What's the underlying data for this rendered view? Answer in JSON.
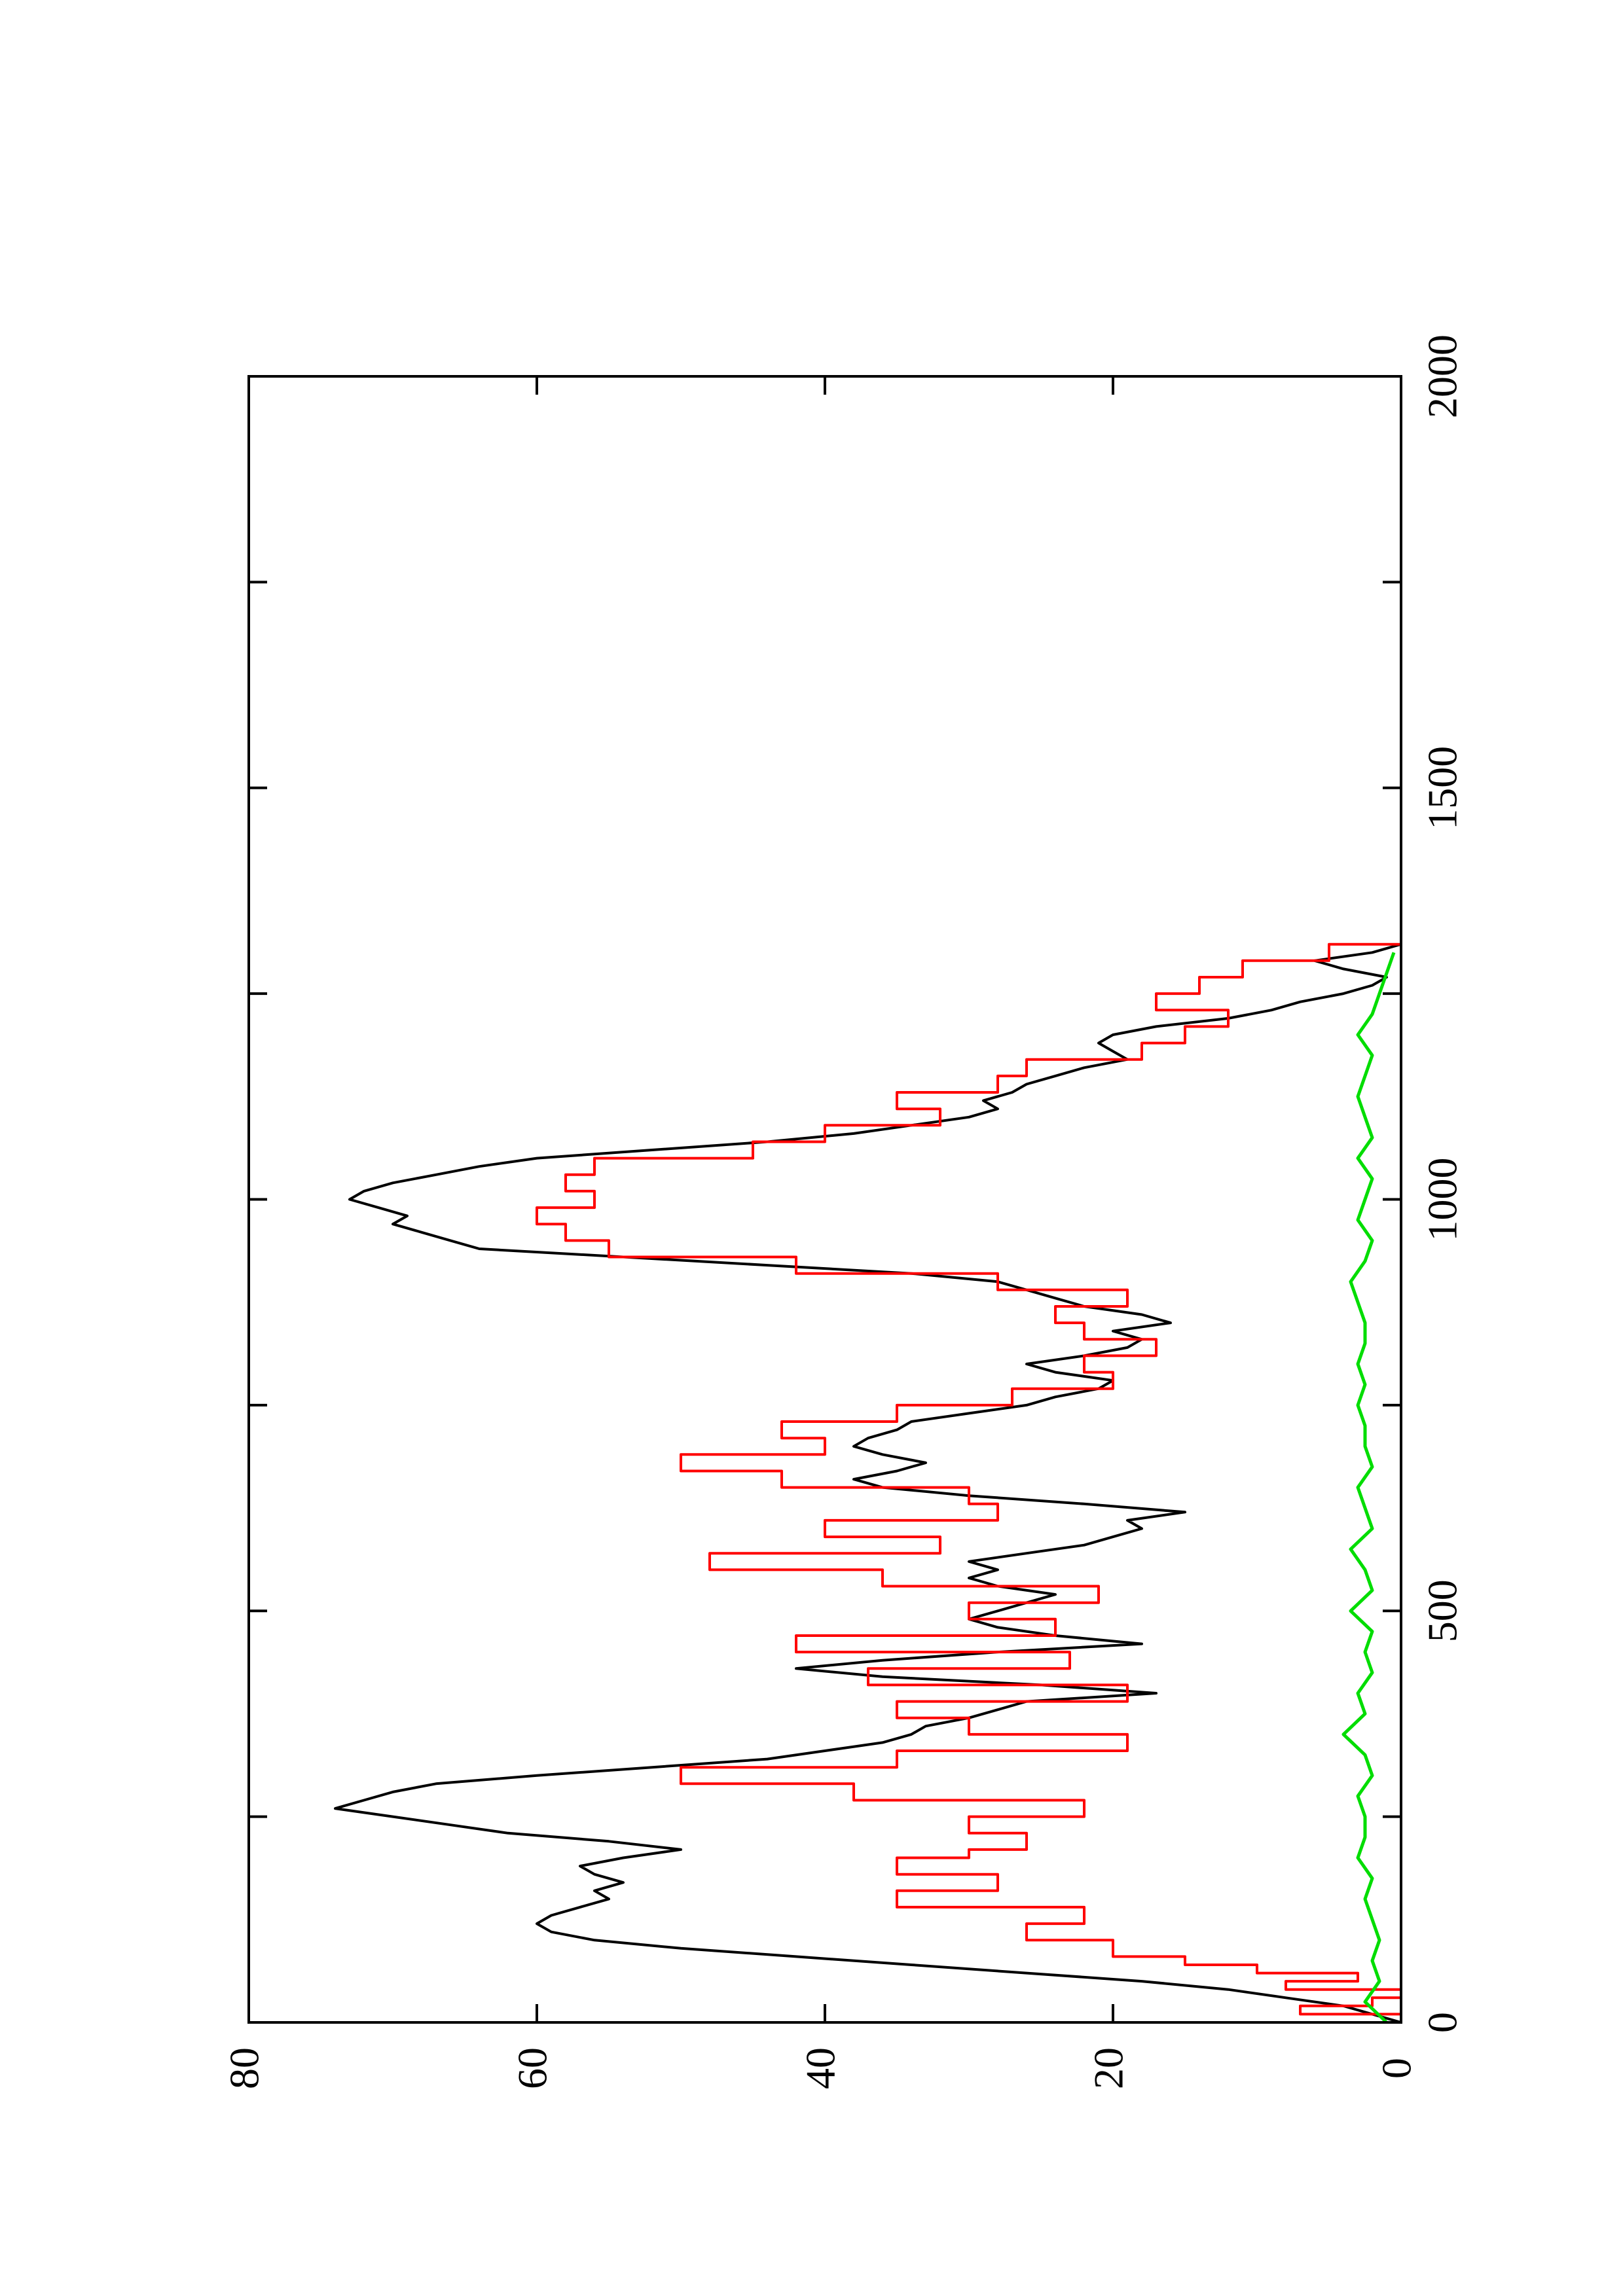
{
  "chart_data": {
    "type": "line",
    "orientation": "rotated-90-ccw",
    "title": "",
    "xlabel": "",
    "ylabel": "",
    "xlim": [
      0,
      2000
    ],
    "ylim": [
      0,
      80
    ],
    "x_ticks": [
      0,
      500,
      1000,
      1500,
      2000
    ],
    "y_ticks": [
      0,
      20,
      40,
      60,
      80
    ],
    "x_tick_labels": [
      "0",
      "500",
      "1000",
      "1500",
      "2000"
    ],
    "y_tick_labels": [
      "0",
      "20",
      "40",
      "60",
      "80"
    ],
    "grid": false,
    "legend": "none",
    "series": [
      {
        "color": "#000000",
        "style": "smooth",
        "x": [
          0,
          10,
          20,
          30,
          40,
          50,
          60,
          70,
          80,
          90,
          100,
          110,
          120,
          130,
          140,
          150,
          160,
          170,
          180,
          190,
          200,
          210,
          220,
          230,
          240,
          250,
          260,
          270,
          280,
          290,
          300,
          310,
          320,
          330,
          340,
          350,
          360,
          370,
          380,
          390,
          400,
          410,
          420,
          430,
          440,
          450,
          460,
          470,
          480,
          490,
          500,
          510,
          520,
          530,
          540,
          550,
          560,
          570,
          580,
          590,
          600,
          610,
          620,
          630,
          640,
          650,
          660,
          670,
          680,
          690,
          700,
          710,
          720,
          730,
          740,
          750,
          760,
          770,
          780,
          790,
          800,
          810,
          820,
          830,
          840,
          850,
          860,
          870,
          880,
          890,
          900,
          910,
          920,
          930,
          940,
          950,
          960,
          970,
          980,
          990,
          1000,
          1010,
          1020,
          1030,
          1040,
          1050,
          1060,
          1070,
          1080,
          1090,
          1100,
          1110,
          1120,
          1130,
          1140,
          1150,
          1160,
          1170,
          1180,
          1190,
          1200,
          1210,
          1220,
          1230,
          1240,
          1250,
          1260,
          1270,
          1280,
          1290,
          1300,
          1310
        ],
        "y": [
          0,
          2,
          4,
          8,
          12,
          18,
          26,
          34,
          42,
          50,
          56,
          59,
          60,
          59,
          57,
          55,
          56,
          54,
          56,
          57,
          54,
          50,
          55,
          62,
          66,
          70,
          74,
          72,
          70,
          67,
          60,
          52,
          44,
          40,
          36,
          34,
          33,
          30,
          28,
          26,
          17,
          25,
          36,
          42,
          36,
          28,
          18,
          24,
          28,
          30,
          28,
          26,
          24,
          28,
          30,
          28,
          30,
          26,
          22,
          20,
          18,
          19,
          15,
          22,
          30,
          36,
          38,
          35,
          33,
          36,
          38,
          37,
          35,
          34,
          30,
          26,
          24,
          21,
          20,
          24,
          26,
          22,
          19,
          18,
          20,
          16,
          18,
          22,
          24,
          26,
          28,
          34,
          44,
          54,
          64,
          66,
          68,
          70,
          69,
          71,
          73,
          72,
          70,
          67,
          64,
          60,
          52,
          44,
          38,
          34,
          30,
          28,
          29,
          27,
          26,
          24,
          22,
          19,
          20,
          21,
          20,
          17,
          12,
          9,
          7,
          4,
          2,
          1,
          4,
          6,
          2,
          0
        ]
      },
      {
        "color": "#ff0000",
        "style": "step",
        "x": [
          0,
          10,
          20,
          30,
          40,
          50,
          60,
          70,
          80,
          100,
          120,
          140,
          160,
          180,
          200,
          210,
          230,
          250,
          270,
          290,
          310,
          330,
          350,
          370,
          390,
          410,
          430,
          450,
          470,
          490,
          510,
          530,
          550,
          570,
          590,
          610,
          630,
          650,
          670,
          690,
          710,
          730,
          750,
          770,
          790,
          810,
          830,
          850,
          870,
          890,
          910,
          930,
          950,
          970,
          990,
          1010,
          1030,
          1050,
          1070,
          1090,
          1110,
          1130,
          1150,
          1170,
          1190,
          1210,
          1230,
          1250,
          1270,
          1290,
          1310
        ],
        "y": [
          0,
          7,
          2,
          0,
          8,
          3,
          10,
          15,
          20,
          26,
          22,
          35,
          28,
          35,
          30,
          26,
          30,
          22,
          38,
          50,
          35,
          19,
          30,
          35,
          19,
          37,
          23,
          42,
          24,
          30,
          21,
          36,
          48,
          32,
          40,
          28,
          30,
          43,
          50,
          40,
          43,
          35,
          27,
          20,
          22,
          17,
          22,
          24,
          19,
          28,
          42,
          55,
          58,
          60,
          56,
          58,
          56,
          45,
          40,
          32,
          35,
          28,
          26,
          18,
          15,
          12,
          17,
          14,
          11,
          5,
          0
        ]
      },
      {
        "color": "#00dd00",
        "style": "noise",
        "x": [
          0,
          25,
          50,
          75,
          100,
          125,
          150,
          175,
          200,
          225,
          250,
          275,
          300,
          325,
          350,
          375,
          400,
          425,
          450,
          475,
          500,
          525,
          550,
          575,
          600,
          625,
          650,
          675,
          700,
          725,
          750,
          775,
          800,
          825,
          850,
          875,
          900,
          925,
          950,
          975,
          1000,
          1025,
          1050,
          1075,
          1100,
          1125,
          1150,
          1175,
          1200,
          1225,
          1250,
          1275,
          1300
        ],
        "y": [
          1.0,
          2.5,
          1.5,
          2.0,
          1.5,
          2.0,
          2.5,
          2.0,
          3.0,
          2.5,
          2.5,
          3.0,
          2.0,
          2.5,
          4.0,
          2.5,
          3.0,
          2.0,
          2.5,
          2.0,
          3.5,
          2.0,
          2.5,
          3.5,
          2.0,
          2.5,
          3.0,
          2.0,
          2.5,
          2.5,
          3.0,
          2.5,
          3.0,
          2.5,
          2.5,
          3.0,
          3.5,
          2.5,
          2.0,
          3.0,
          2.5,
          2.0,
          3.0,
          2.0,
          2.5,
          3.0,
          2.5,
          2.0,
          3.0,
          2.0,
          1.5,
          1.0,
          0.5
        ]
      }
    ]
  }
}
